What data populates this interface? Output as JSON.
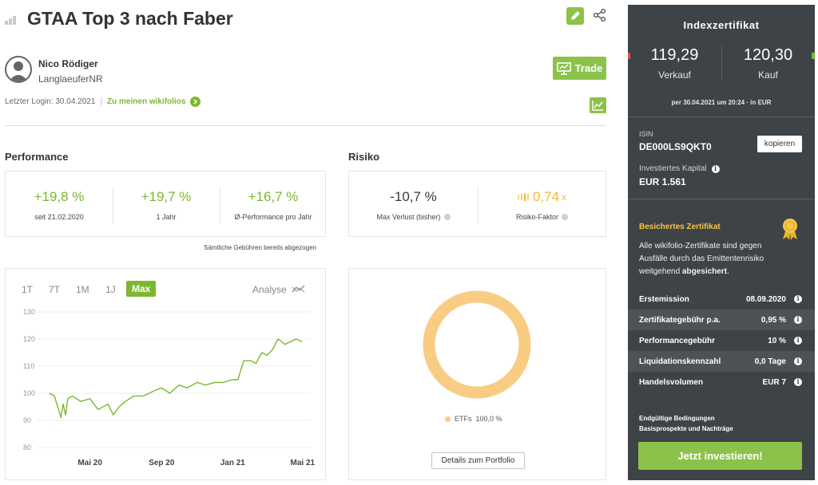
{
  "header": {
    "title": "GTAA Top 3 nach Faber"
  },
  "author": {
    "name": "Nico Rödiger",
    "nickname": "LanglaeuferNR",
    "trade_label": "Trade",
    "last_login": "Letzter Login: 30.04.2021",
    "separator": "|",
    "wikifolios_link": "Zu meinen wikifolios"
  },
  "performance": {
    "title": "Performance",
    "items": [
      {
        "value": "+19,8 %",
        "label": "seit 21.02.2020"
      },
      {
        "value": "+19,7 %",
        "label": "1 Jahr"
      },
      {
        "value": "+16,7 %",
        "label": "Ø-Performance pro Jahr"
      }
    ],
    "fee_note": "Sämtliche Gebühren bereits abgezogen"
  },
  "risk": {
    "title": "Risiko",
    "items": [
      {
        "value": "-10,7 %",
        "label": "Max Verlust (bisher)"
      },
      {
        "value": "0,74",
        "suffix": "x",
        "label": "Risiko-Faktor",
        "level": 0.4
      }
    ]
  },
  "chart_tabs": {
    "tabs": [
      "1T",
      "7T",
      "1M",
      "1J",
      "Max"
    ],
    "active": "Max",
    "analyse_label": "Analyse"
  },
  "chart_data": [
    {
      "type": "line",
      "title": "",
      "xlabel": "",
      "ylabel": "",
      "ylim": [
        80,
        130
      ],
      "yticks": [
        80,
        90,
        100,
        110,
        120,
        130
      ],
      "xticks": [
        "Mai 20",
        "Sep 20",
        "Jan 21",
        "Mai 21"
      ],
      "grid": true,
      "series": [
        {
          "x": [
            "2020-02-21",
            "2020-03-01",
            "2020-03-08",
            "2020-03-12",
            "2020-03-16",
            "2020-03-20",
            "2020-03-24",
            "2020-04-01",
            "2020-04-15",
            "2020-05-01",
            "2020-05-15",
            "2020-06-01",
            "2020-06-10",
            "2020-06-20",
            "2020-07-01",
            "2020-07-15",
            "2020-08-01",
            "2020-08-20",
            "2020-09-01",
            "2020-09-15",
            "2020-10-01",
            "2020-10-15",
            "2020-11-01",
            "2020-11-15",
            "2020-12-01",
            "2020-12-15",
            "2021-01-01",
            "2021-01-10",
            "2021-01-20",
            "2021-02-01",
            "2021-02-10",
            "2021-02-20",
            "2021-03-01",
            "2021-03-10",
            "2021-03-20",
            "2021-04-01",
            "2021-04-10",
            "2021-04-20",
            "2021-04-30"
          ],
          "values": [
            100,
            99,
            94,
            91,
            96,
            92,
            98,
            99,
            97,
            98,
            94,
            96,
            92,
            95,
            97,
            99,
            99,
            101,
            102,
            100,
            103,
            102,
            104,
            103,
            104,
            104,
            105,
            105,
            112,
            112,
            111,
            115,
            114,
            116,
            120,
            118,
            119,
            120,
            119
          ]
        }
      ]
    },
    {
      "type": "pie",
      "title": "",
      "categories": [
        "ETFs"
      ],
      "values": [
        100
      ],
      "value_labels": [
        "100,0 %"
      ],
      "colors": [
        "#f9cc84"
      ]
    }
  ],
  "portfolio_button": "Details zum Portfolio",
  "sidebar": {
    "heading": "Indexzertifikat",
    "sell_value": "119,29",
    "sell_label": "Verkauf",
    "buy_value": "120,30",
    "buy_label": "Kauf",
    "as_of": "per 30.04.2021 um 20:24 · in EUR",
    "isin_label": "ISIN",
    "isin": "DE000LS9QKT0",
    "copy_label": "kopieren",
    "capital_label": "Investiertes Kapital",
    "capital_value": "EUR 1.561",
    "secured_title": "Besichertes Zertifikat",
    "secured_text_1": "Alle wikifolio-Zertifikate sind gegen Ausfälle durch das Emittentenrisiko weitgehend ",
    "secured_text_bold": "abgesichert",
    "secured_text_2": ".",
    "rows": [
      {
        "key": "Erstemission",
        "value": "08.09.2020"
      },
      {
        "key": "Zertifikategebühr p.a.",
        "value": "0,95 %"
      },
      {
        "key": "Performancegebühr",
        "value": "10 %"
      },
      {
        "key": "Liquidationskennzahl",
        "value": "0,0 Tage"
      },
      {
        "key": "Handelsvolumen",
        "value": "EUR 7"
      }
    ],
    "doc_1": "Endgültige Bedingungen",
    "doc_2": "Basisprospekte und Nachträge",
    "invest_label": "Jetzt investieren!"
  },
  "colors": {
    "accent_green": "#8bc34a",
    "link_green": "#7cb82f",
    "risk_orange": "#f7b733",
    "donut": "#f9cc84",
    "sidebar_bg": "#3d4347"
  }
}
